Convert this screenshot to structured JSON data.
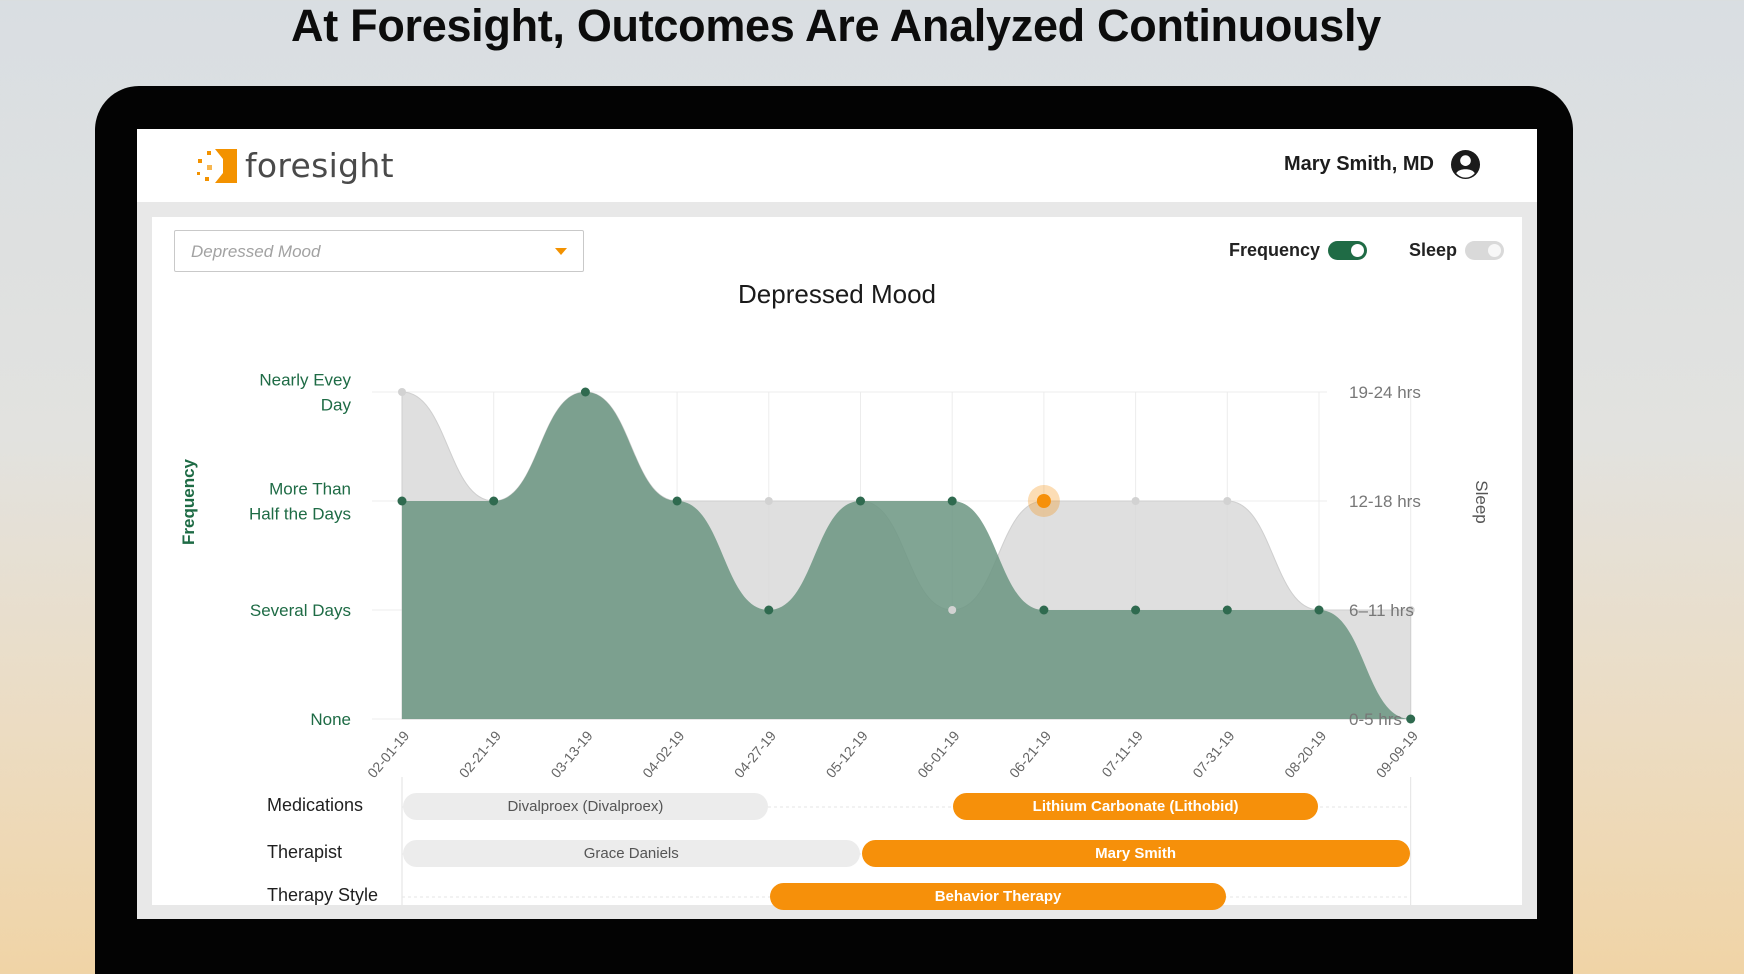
{
  "headline": "At Foresight, Outcomes Are Analyzed Continuously",
  "app": {
    "brand": "foresight",
    "user_name": "Mary Smith, MD"
  },
  "filter": {
    "selected": "Depressed Mood"
  },
  "toggles": {
    "frequency_label": "Frequency",
    "frequency_on": true,
    "sleep_label": "Sleep",
    "sleep_on": false
  },
  "colors": {
    "frequency_fill": "#6b9581",
    "frequency_point": "#2f6a4f",
    "sleep_fill": "#d9d9d9",
    "accent": "#f6900a"
  },
  "chart_data": {
    "type": "area",
    "title": "Depressed Mood",
    "ylabel": "Frequency",
    "y2label": "Sleep",
    "y_ticks": [
      "None",
      "Several Days",
      "More Than Half the Days",
      "Nearly Evey Day"
    ],
    "y_tick_lines": [
      [
        "None"
      ],
      [
        "Several Days"
      ],
      [
        "More Than",
        "Half the Days"
      ],
      [
        "Nearly Evey",
        "Day"
      ]
    ],
    "y2_ticks": [
      "0-5 hrs",
      "6–11 hrs",
      "12-18 hrs",
      "19-24 hrs"
    ],
    "x": [
      "02-01-19",
      "02-21-19",
      "03-13-19",
      "04-02-19",
      "04-27-19",
      "05-12-19",
      "06-01-19",
      "06-21-19",
      "07-11-19",
      "07-31-19",
      "08-20-19",
      "09-09-19"
    ],
    "series": [
      {
        "name": "Frequency",
        "values": [
          2,
          2,
          3,
          2,
          1,
          2,
          2,
          1,
          1,
          1,
          1,
          0
        ]
      },
      {
        "name": "Sleep",
        "values": [
          3,
          2,
          3,
          2,
          2,
          2,
          1,
          2,
          2,
          2,
          1,
          1
        ]
      }
    ],
    "highlight": {
      "x": "06-21-19",
      "series": "Sleep"
    },
    "grid": true
  },
  "timeline": {
    "rows": [
      {
        "label": "Medications",
        "bars": [
          {
            "text": "Divalproex (Divalproex)",
            "from": 0,
            "to": 4,
            "active": false
          },
          {
            "text": "Lithium Carbonate (Lithobid)",
            "from": 6,
            "to": 10,
            "active": true
          }
        ]
      },
      {
        "label": "Therapist",
        "bars": [
          {
            "text": "Grace Daniels",
            "from": 0,
            "to": 5,
            "active": false
          },
          {
            "text": "Mary Smith",
            "from": 5,
            "to": 11,
            "active": true
          }
        ]
      },
      {
        "label": "Therapy Style",
        "bars": [
          {
            "text": "Behavior Therapy",
            "from": 4,
            "to": 9,
            "active": true
          }
        ]
      }
    ]
  }
}
